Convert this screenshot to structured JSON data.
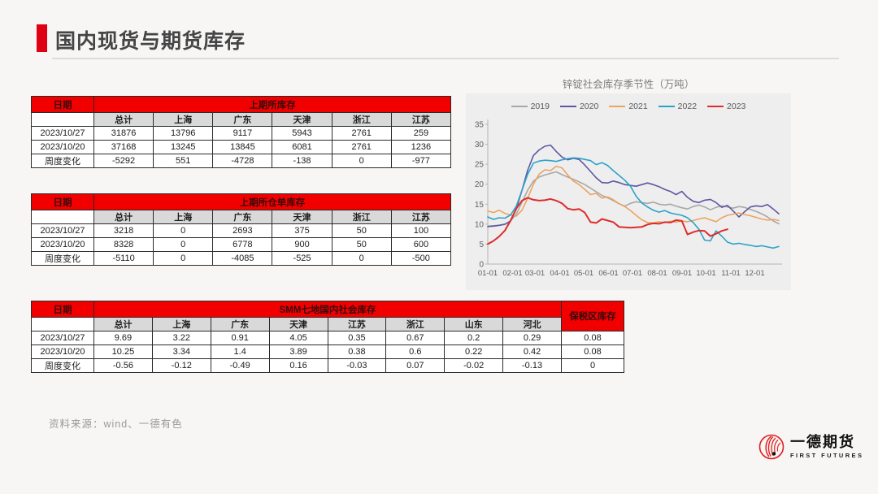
{
  "page": {
    "title": "国内现货与期货库存",
    "source": "资料来源：wind、一德有色"
  },
  "logo": {
    "cn": "一德期货",
    "en": "FIRST FUTURES"
  },
  "colors": {
    "accent_red": "#e00013",
    "table_header_red": "#f20000",
    "table_subheader_gray": "#d9d9d9",
    "chart_panel_bg": "#efeeee"
  },
  "tables": [
    {
      "name": "shfe-inventory",
      "corner": "日期",
      "group_header": "上期所库存",
      "columns": [
        "总计",
        "上海",
        "广东",
        "天津",
        "浙江",
        "江苏"
      ],
      "rows": [
        {
          "label": "2023/10/27",
          "values": [
            "31876",
            "13796",
            "9117",
            "5943",
            "2761",
            "259"
          ]
        },
        {
          "label": "2023/10/20",
          "values": [
            "37168",
            "13245",
            "13845",
            "6081",
            "2761",
            "1236"
          ]
        },
        {
          "label": "周度变化",
          "values": [
            "-5292",
            "551",
            "-4728",
            "-138",
            "0",
            "-977"
          ]
        }
      ]
    },
    {
      "name": "shfe-warrant-inventory",
      "corner": "日期",
      "group_header": "上期所仓单库存",
      "columns": [
        "总计",
        "上海",
        "广东",
        "天津",
        "浙江",
        "江苏"
      ],
      "rows": [
        {
          "label": "2023/10/27",
          "values": [
            "3218",
            "0",
            "2693",
            "375",
            "50",
            "100"
          ]
        },
        {
          "label": "2023/10/20",
          "values": [
            "8328",
            "0",
            "6778",
            "900",
            "50",
            "600"
          ]
        },
        {
          "label": "周度变化",
          "values": [
            "-5110",
            "0",
            "-4085",
            "-525",
            "0",
            "-500"
          ]
        }
      ]
    },
    {
      "name": "smm-social-inventory",
      "corner": "日期",
      "group_header": "SMM七地国内社会库存",
      "extra_header": "保税区库存",
      "columns": [
        "总计",
        "上海",
        "广东",
        "天津",
        "江苏",
        "浙江",
        "山东",
        "河北"
      ],
      "rows": [
        {
          "label": "2023/10/27",
          "values": [
            "9.69",
            "3.22",
            "0.91",
            "4.05",
            "0.35",
            "0.67",
            "0.2",
            "0.29"
          ],
          "extra": "0.08"
        },
        {
          "label": "2023/10/20",
          "values": [
            "10.25",
            "3.34",
            "1.4",
            "3.89",
            "0.38",
            "0.6",
            "0.22",
            "0.42"
          ],
          "extra": "0.08"
        },
        {
          "label": "周度变化",
          "values": [
            "-0.56",
            "-0.12",
            "-0.49",
            "0.16",
            "-0.03",
            "0.07",
            "-0.02",
            "-0.13"
          ],
          "extra": "0"
        }
      ]
    }
  ],
  "chart_data": {
    "type": "line",
    "title": "锌锭社会库存季节性（万吨）",
    "xlabel": "",
    "ylabel": "",
    "ylim": [
      0,
      35
    ],
    "yticks": [
      0,
      5,
      10,
      15,
      20,
      25,
      30,
      35
    ],
    "x_labels": [
      "01-01",
      "02-01",
      "03-01",
      "04-01",
      "05-01",
      "06-01",
      "07-01",
      "08-01",
      "09-01",
      "10-01",
      "11-01",
      "12-01"
    ],
    "x_label_day_offsets": [
      0,
      31,
      59,
      90,
      120,
      151,
      181,
      212,
      243,
      273,
      304,
      334
    ],
    "x_spacing": "weekly",
    "grid": false,
    "legend_position": "top",
    "series": [
      {
        "name": "2019",
        "color": "#a8a8a8",
        "values": [
          9.5,
          9.6,
          9.7,
          9.9,
          10.8,
          12.5,
          15.5,
          18.5,
          20.8,
          21.8,
          22.3,
          22.7,
          23.1,
          22.4,
          21.8,
          21.2,
          20.6,
          19.9,
          19.0,
          18.1,
          17.2,
          16.6,
          15.9,
          15.1,
          14.5,
          15.2,
          15.6,
          15.4,
          15.2,
          15.5,
          15.0,
          14.8,
          15.0,
          14.5,
          14.1,
          13.8,
          14.4,
          14.8,
          14.3,
          13.6,
          14.2,
          14.6,
          14.3,
          14.0,
          14.4,
          14.2,
          13.7,
          13.2,
          12.6,
          11.8,
          10.8,
          10.1
        ]
      },
      {
        "name": "2020",
        "color": "#5d57a2",
        "values": [
          9.4,
          9.5,
          9.7,
          10.0,
          10.8,
          13.8,
          18.5,
          23.5,
          27.2,
          28.6,
          29.5,
          29.8,
          28.2,
          26.8,
          26.1,
          26.5,
          26.2,
          24.8,
          23.2,
          21.6,
          20.4,
          20.3,
          20.8,
          20.4,
          19.9,
          19.7,
          19.5,
          19.9,
          20.3,
          19.9,
          19.4,
          18.7,
          18.2,
          17.4,
          18.2,
          16.7,
          15.7,
          15.4,
          16.0,
          16.2,
          15.4,
          14.2,
          14.7,
          13.3,
          11.8,
          13.1,
          14.3,
          14.6,
          14.4,
          14.9,
          13.8,
          12.6
        ]
      },
      {
        "name": "2021",
        "color": "#eda35f",
        "values": [
          13.3,
          12.9,
          13.5,
          12.7,
          12.3,
          12.0,
          13.5,
          16.5,
          20.0,
          22.5,
          23.6,
          23.4,
          24.5,
          24.1,
          22.3,
          20.8,
          19.9,
          18.7,
          17.4,
          17.7,
          16.5,
          16.8,
          16.1,
          15.1,
          14.4,
          13.4,
          12.2,
          11.1,
          10.4,
          10.3,
          10.6,
          10.4,
          10.7,
          10.5,
          10.8,
          10.6,
          10.9,
          11.3,
          11.6,
          11.1,
          10.6,
          11.6,
          12.2,
          12.5,
          12.8,
          12.4,
          12.1,
          11.7,
          11.3,
          11.0,
          11.2,
          10.9
        ]
      },
      {
        "name": "2022",
        "color": "#2ba3c9",
        "values": [
          11.8,
          11.2,
          11.6,
          11.5,
          12.3,
          14.5,
          18.5,
          22.5,
          25.3,
          25.8,
          26.0,
          25.9,
          25.7,
          26.1,
          26.4,
          26.6,
          26.5,
          26.2,
          25.9,
          24.9,
          25.4,
          24.7,
          23.4,
          22.2,
          21.0,
          19.5,
          17.0,
          15.3,
          14.3,
          13.5,
          13.0,
          13.4,
          12.8,
          12.5,
          12.2,
          11.6,
          10.4,
          8.7,
          6.0,
          5.8,
          8.3,
          7.0,
          5.5,
          5.0,
          5.2,
          4.9,
          4.7,
          4.4,
          4.6,
          4.3,
          4.0,
          4.4
        ]
      },
      {
        "name": "2023",
        "color": "#dd2c2c",
        "values": [
          5.0,
          5.8,
          6.9,
          8.4,
          10.9,
          13.9,
          15.9,
          16.6,
          16.1,
          15.9,
          16.0,
          16.3,
          15.9,
          15.2,
          13.9,
          13.6,
          13.8,
          12.9,
          10.5,
          10.3,
          11.3,
          10.9,
          10.5,
          9.3,
          9.2,
          9.1,
          9.2,
          9.3,
          9.9,
          10.2,
          10.1,
          10.5,
          10.4,
          11.0,
          10.8,
          7.4,
          8.0,
          8.4,
          8.3,
          7.0,
          7.6,
          8.3,
          8.7
        ]
      }
    ]
  }
}
